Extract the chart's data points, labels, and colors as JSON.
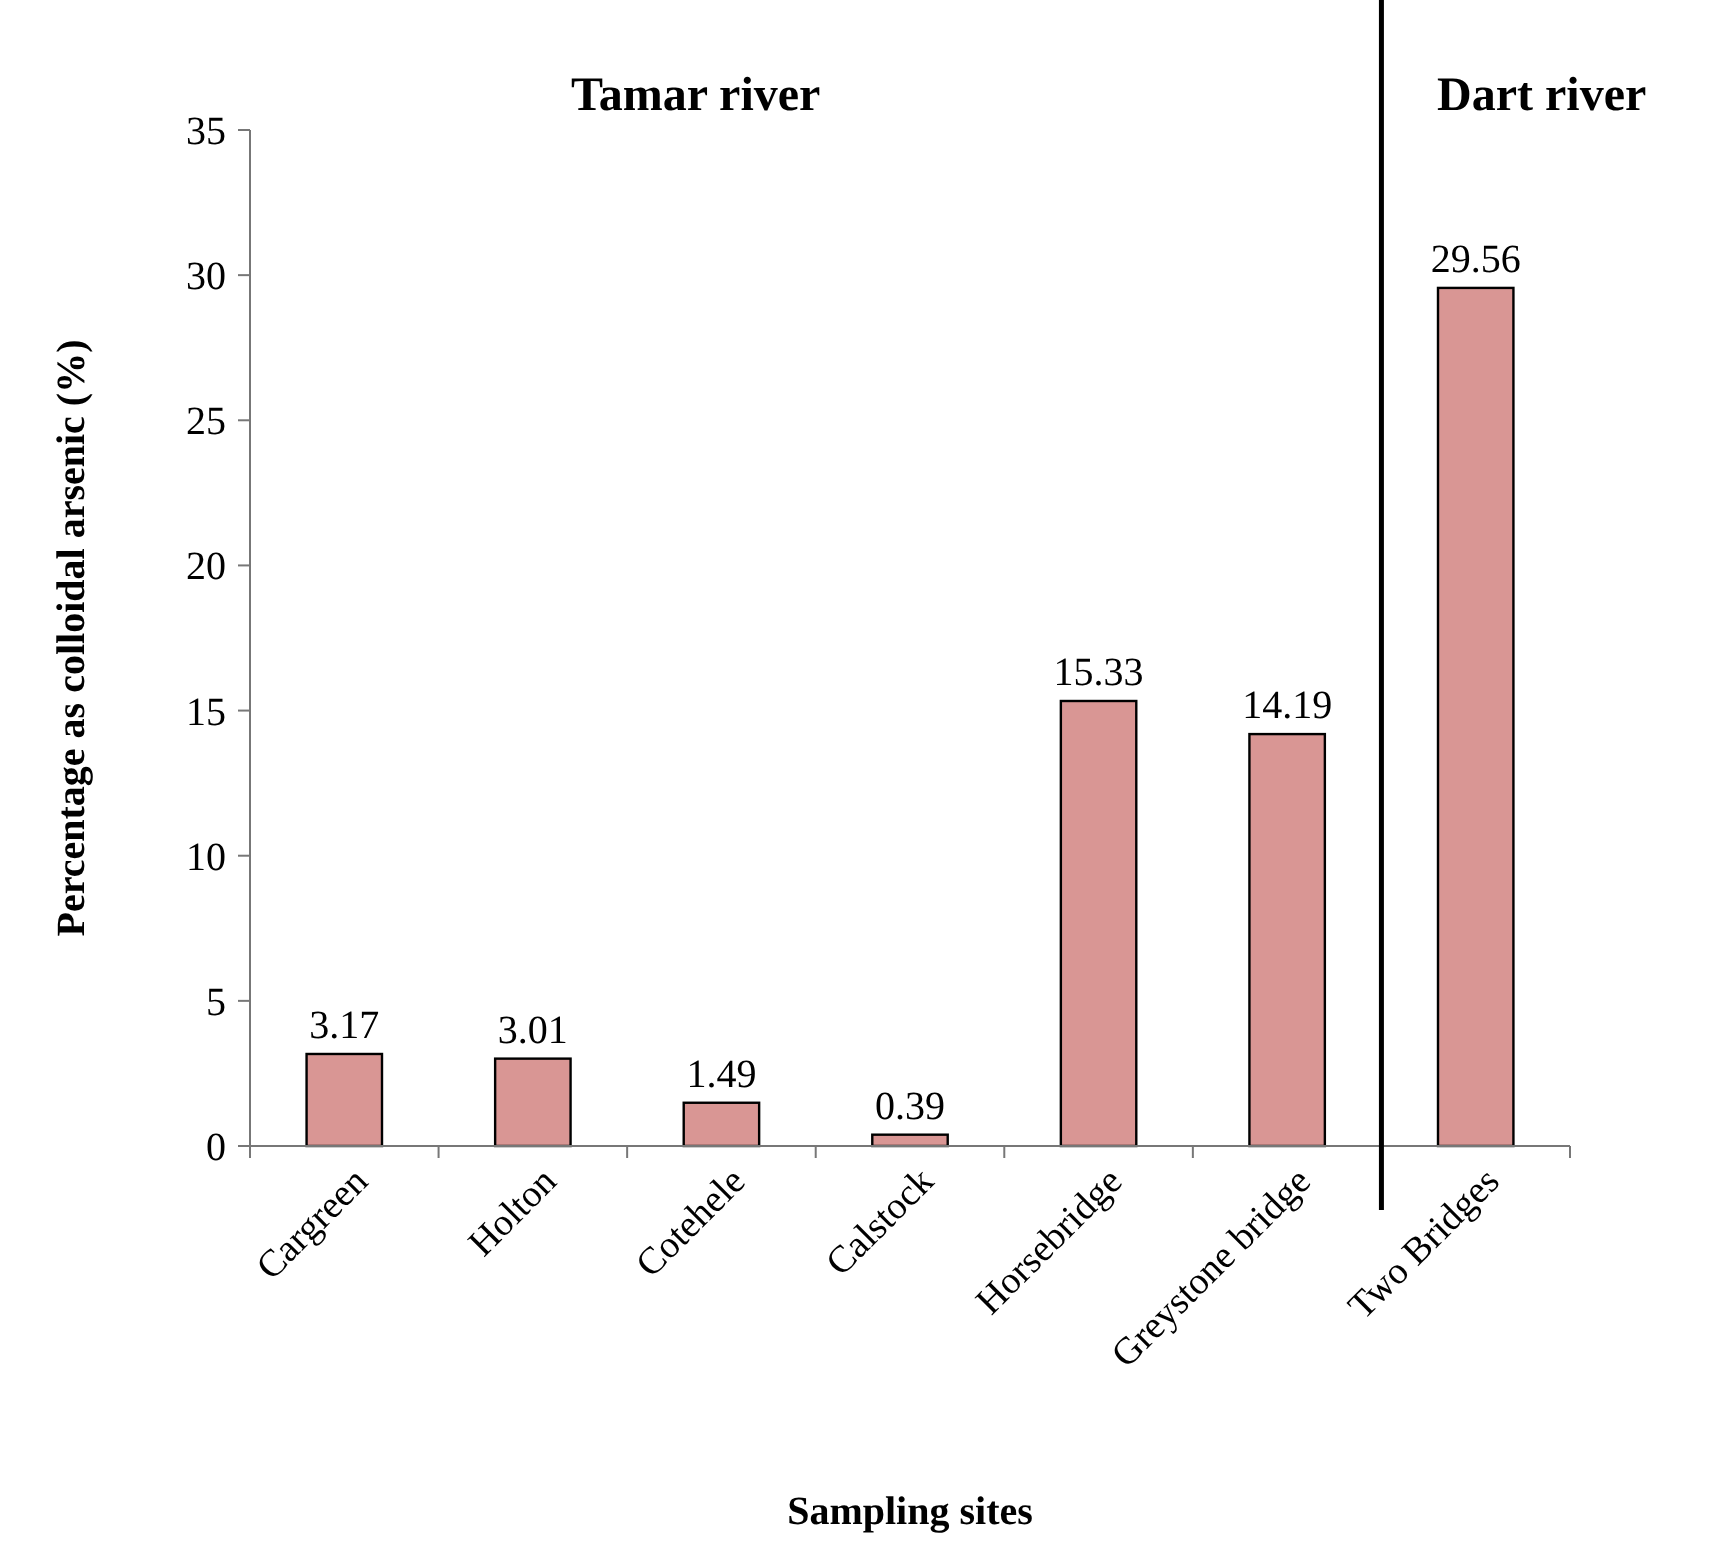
{
  "chart_data": {
    "type": "bar",
    "xlabel": "Sampling sites",
    "ylabel": "Percentage as colloidal arsenic (%)",
    "categories": [
      "Cargreen",
      "Holton",
      "Cotehele",
      "Calstock",
      "Horsebridge",
      "Greystone bridge",
      "Two Bridges"
    ],
    "values": [
      3.17,
      3.01,
      1.49,
      0.39,
      15.33,
      14.19,
      29.56
    ],
    "color": "#d99694",
    "data_labels": true,
    "ylim": [
      0,
      35
    ],
    "yticks": [
      0,
      5,
      10,
      15,
      20,
      25,
      30,
      35
    ],
    "grid": false,
    "ref_lines": [
      {
        "axis": "x",
        "value": "Two Bridges",
        "color": "#000000"
      }
    ],
    "annotations": [
      "Tamar  river",
      "Dart  river"
    ]
  }
}
